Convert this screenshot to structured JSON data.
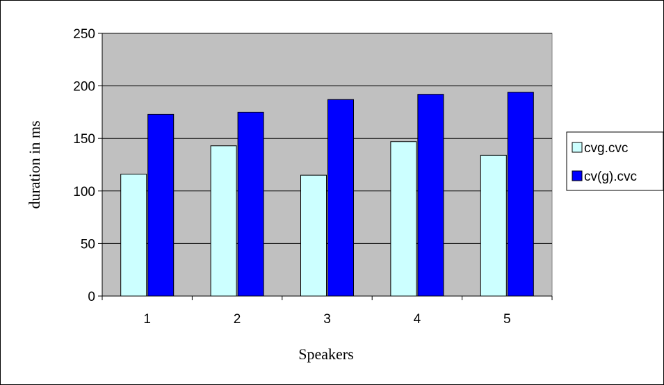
{
  "chart_data": {
    "type": "bar",
    "categories": [
      "1",
      "2",
      "3",
      "4",
      "5"
    ],
    "series": [
      {
        "name": "cvg.cvc",
        "values": [
          116,
          143,
          115,
          147,
          134
        ],
        "color": "#ccffff"
      },
      {
        "name": "cv(g).cvc",
        "values": [
          173,
          175,
          187,
          192,
          194
        ],
        "color": "#0000ff"
      }
    ],
    "xlabel": "Speakers",
    "ylabel": "duration in ms",
    "ylim": [
      0,
      250
    ],
    "yticks": [
      0,
      50,
      100,
      150,
      200,
      250
    ],
    "grid": true,
    "legend": "right",
    "plot_background": "#c0c0c0"
  }
}
